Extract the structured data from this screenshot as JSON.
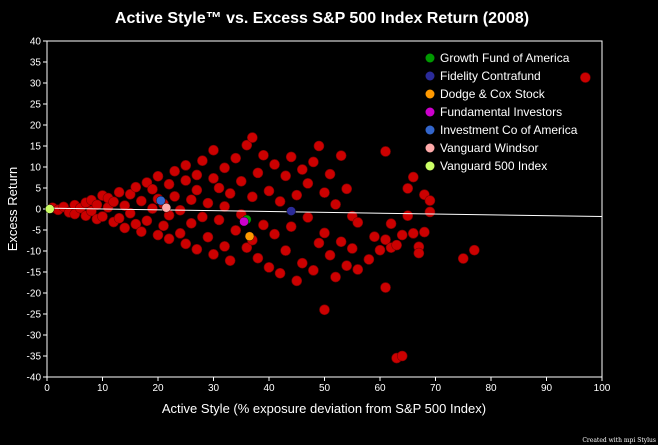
{
  "chart_data": {
    "type": "scatter",
    "title": "Active Style™ vs. Excess S&P 500 Index Return (2008)",
    "xlabel": "Active Style (% exposure deviation from S&P 500 Index)",
    "ylabel": "Excess Return",
    "xlim": [
      0,
      100
    ],
    "ylim": [
      -40,
      40
    ],
    "xticks": [
      0,
      10,
      20,
      30,
      40,
      50,
      60,
      70,
      80,
      90,
      100
    ],
    "yticks": [
      40,
      35,
      30,
      25,
      20,
      15,
      10,
      5,
      0,
      -5,
      -10,
      -15,
      -20,
      -25,
      -30,
      -35,
      -40
    ],
    "grid": false,
    "legend_position": "top-right",
    "background_color": "#000000",
    "universe_color": "#cc0000",
    "trend_line": {
      "x": [
        0,
        100
      ],
      "y": [
        0.2,
        -1.8
      ],
      "color": "#ffffff"
    },
    "universe_points": [
      [
        1,
        0.3
      ],
      [
        2,
        -0.2
      ],
      [
        3,
        0.5
      ],
      [
        4,
        -0.8
      ],
      [
        5,
        0.9
      ],
      [
        5,
        -1.2
      ],
      [
        6,
        0.2
      ],
      [
        7,
        1.5
      ],
      [
        7,
        -1.6
      ],
      [
        8,
        2.1
      ],
      [
        8,
        -0.5
      ],
      [
        9,
        -2.4
      ],
      [
        9,
        1.0
      ],
      [
        10,
        3.2
      ],
      [
        10,
        -1.8
      ],
      [
        11,
        0.4
      ],
      [
        11,
        2.6
      ],
      [
        12,
        -3.1
      ],
      [
        12,
        1.7
      ],
      [
        13,
        4.0
      ],
      [
        13,
        -2.2
      ],
      [
        14,
        0.8
      ],
      [
        14,
        -4.5
      ],
      [
        15,
        3.5
      ],
      [
        15,
        -1.0
      ],
      [
        16,
        5.2
      ],
      [
        16,
        -3.6
      ],
      [
        17,
        1.9
      ],
      [
        17,
        -5.4
      ],
      [
        18,
        6.3
      ],
      [
        18,
        -2.8
      ],
      [
        19,
        0.1
      ],
      [
        19,
        4.7
      ],
      [
        20,
        -6.2
      ],
      [
        20,
        2.4
      ],
      [
        20,
        7.8
      ],
      [
        21,
        -4.0
      ],
      [
        21,
        1.2
      ],
      [
        22,
        5.9
      ],
      [
        22,
        -7.1
      ],
      [
        22,
        -1.5
      ],
      [
        23,
        9.0
      ],
      [
        23,
        3.0
      ],
      [
        24,
        -5.8
      ],
      [
        24,
        -0.3
      ],
      [
        25,
        6.8
      ],
      [
        25,
        10.4
      ],
      [
        25,
        -8.3
      ],
      [
        26,
        2.2
      ],
      [
        26,
        -3.4
      ],
      [
        27,
        8.1
      ],
      [
        27,
        -9.6
      ],
      [
        27,
        4.5
      ],
      [
        28,
        -1.9
      ],
      [
        28,
        11.5
      ],
      [
        29,
        -6.7
      ],
      [
        29,
        1.4
      ],
      [
        30,
        7.3
      ],
      [
        30,
        -10.8
      ],
      [
        30,
        14.0
      ],
      [
        31,
        -2.6
      ],
      [
        31,
        5.0
      ],
      [
        32,
        -8.9
      ],
      [
        32,
        9.8
      ],
      [
        32,
        0.6
      ],
      [
        33,
        -12.3
      ],
      [
        33,
        3.7
      ],
      [
        34,
        12.1
      ],
      [
        34,
        -5.1
      ],
      [
        35,
        -1.3
      ],
      [
        35,
        6.6
      ],
      [
        36,
        -9.2
      ],
      [
        36,
        15.2
      ],
      [
        37,
        17.0
      ],
      [
        37,
        -7.4
      ],
      [
        37,
        2.9
      ],
      [
        38,
        -11.7
      ],
      [
        38,
        8.6
      ],
      [
        39,
        -3.8
      ],
      [
        39,
        12.8
      ],
      [
        40,
        -13.9
      ],
      [
        40,
        4.3
      ],
      [
        41,
        -6.0
      ],
      [
        41,
        10.6
      ],
      [
        42,
        -15.3
      ],
      [
        42,
        1.8
      ],
      [
        43,
        -9.9
      ],
      [
        43,
        7.9
      ],
      [
        44,
        12.4
      ],
      [
        44,
        -4.2
      ],
      [
        45,
        -17.1
      ],
      [
        45,
        3.3
      ],
      [
        46,
        9.4
      ],
      [
        46,
        -12.9
      ],
      [
        47,
        -2.0
      ],
      [
        47,
        6.1
      ],
      [
        48,
        -14.6
      ],
      [
        48,
        11.2
      ],
      [
        49,
        -8.1
      ],
      [
        49,
        15.0
      ],
      [
        50,
        -24.0
      ],
      [
        50,
        -5.7
      ],
      [
        50,
        3.9
      ],
      [
        51,
        -11.0
      ],
      [
        51,
        8.3
      ],
      [
        52,
        -16.2
      ],
      [
        52,
        1.1
      ],
      [
        53,
        -7.8
      ],
      [
        53,
        12.7
      ],
      [
        54,
        -13.5
      ],
      [
        54,
        4.8
      ],
      [
        55,
        -1.7
      ],
      [
        55,
        -9.4
      ],
      [
        56,
        -14.4
      ],
      [
        56,
        -3.2
      ],
      [
        58,
        -12.0
      ],
      [
        59,
        -6.6
      ],
      [
        60,
        -9.8
      ],
      [
        61,
        13.7
      ],
      [
        61,
        -7.3
      ],
      [
        61,
        -18.7
      ],
      [
        62,
        -3.5
      ],
      [
        62,
        -9.2
      ],
      [
        63,
        -35.5
      ],
      [
        63,
        -8.6
      ],
      [
        64,
        -35.0
      ],
      [
        64,
        -6.2
      ],
      [
        65,
        4.9
      ],
      [
        65,
        -1.6
      ],
      [
        66,
        7.6
      ],
      [
        66,
        -5.8
      ],
      [
        67,
        -9.0
      ],
      [
        67,
        -10.5
      ],
      [
        68,
        3.4
      ],
      [
        68,
        -5.5
      ],
      [
        69,
        2.0
      ],
      [
        69,
        -0.7
      ],
      [
        75,
        -11.8
      ],
      [
        77,
        -9.8
      ],
      [
        97,
        31.3
      ]
    ],
    "series": [
      {
        "name": "Growth Fund of America",
        "color": "#009900",
        "x": 36,
        "y": -2.5
      },
      {
        "name": "Fidelity Contrafund",
        "color": "#2b2b99",
        "x": 44,
        "y": -0.5
      },
      {
        "name": "Dodge & Cox Stock",
        "color": "#ff9900",
        "x": 36.5,
        "y": -6.5
      },
      {
        "name": "Fundamental Investors",
        "color": "#cc00cc",
        "x": 35.5,
        "y": -3
      },
      {
        "name": "Investment Co of America",
        "color": "#3366cc",
        "x": 20.5,
        "y": 2
      },
      {
        "name": "Vanguard Windsor",
        "color": "#ffaaaa",
        "x": 21.5,
        "y": 0.3
      },
      {
        "name": "Vanguard 500 Index",
        "color": "#ccff66",
        "x": 0.5,
        "y": 0
      }
    ]
  },
  "footer": {
    "credit": "Created with mpi Stylus"
  }
}
